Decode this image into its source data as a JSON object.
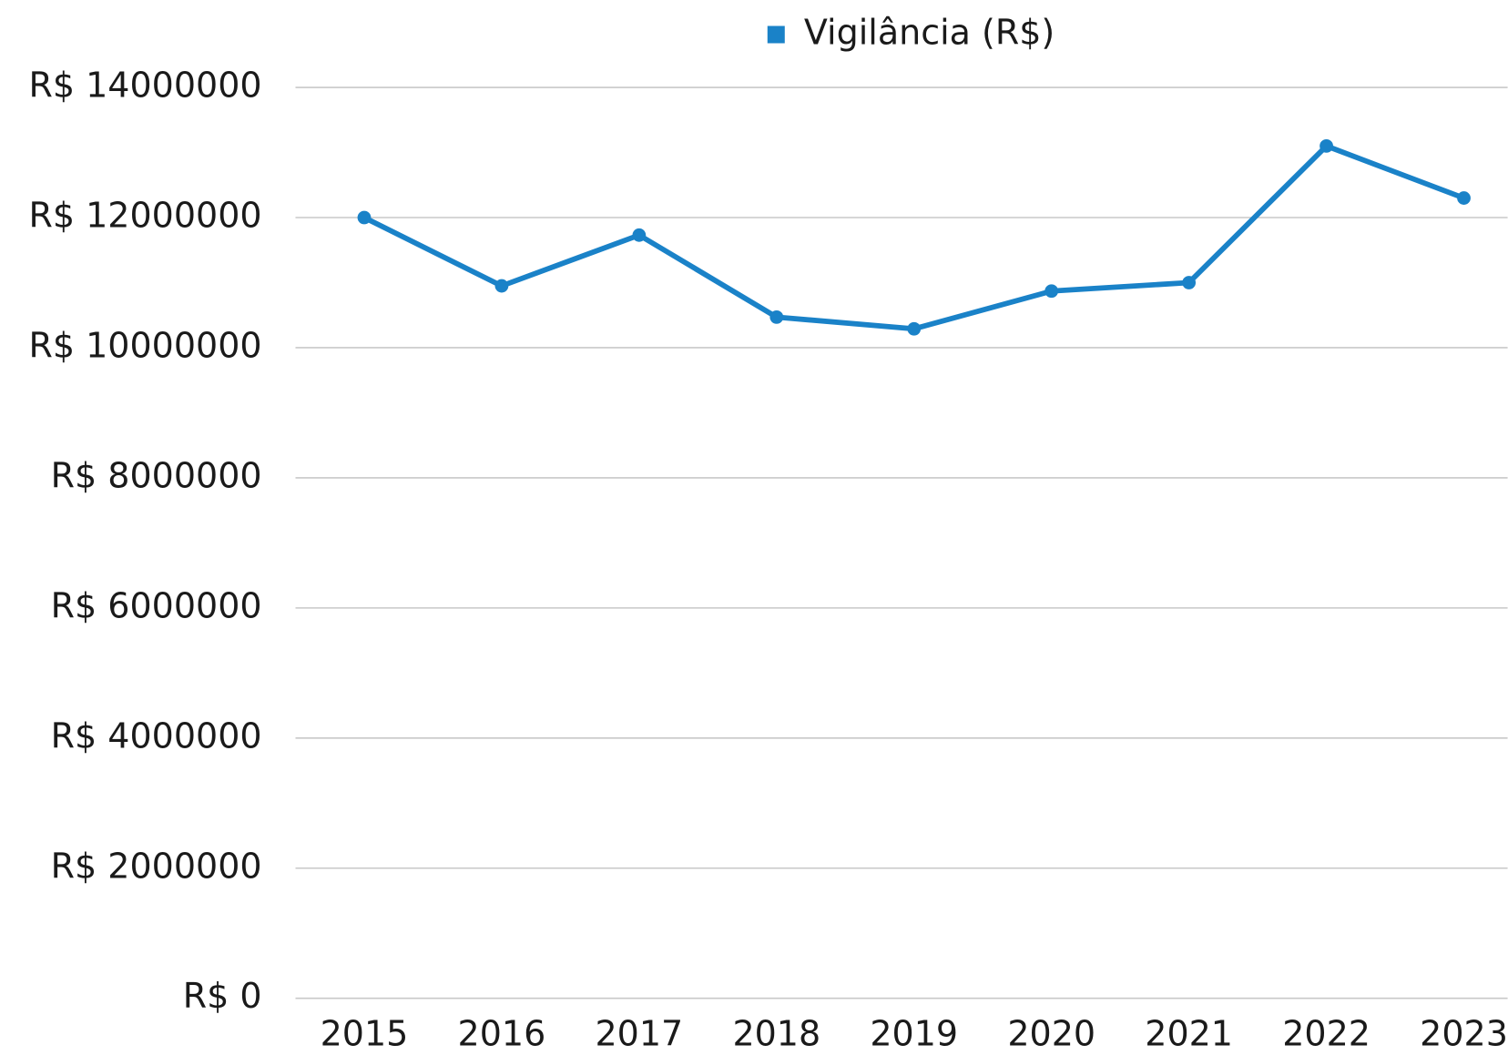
{
  "chart_data": {
    "type": "line",
    "categories": [
      "2015",
      "2016",
      "2017",
      "2018",
      "2019",
      "2020",
      "2021",
      "2022",
      "2023"
    ],
    "series": [
      {
        "name": "Vigilância (R$)",
        "color": "#1a82c8",
        "values": [
          12000000,
          10950000,
          11730000,
          10470000,
          10290000,
          10870000,
          11000000,
          13100000,
          12300000
        ]
      }
    ],
    "ylim": [
      0,
      14000000
    ],
    "yticks": [
      {
        "value": 0,
        "label": "R$ 0"
      },
      {
        "value": 2000000,
        "label": "R$ 2000000"
      },
      {
        "value": 4000000,
        "label": "R$ 4000000"
      },
      {
        "value": 6000000,
        "label": "R$ 6000000"
      },
      {
        "value": 8000000,
        "label": "R$ 8000000"
      },
      {
        "value": 10000000,
        "label": "R$ 10000000"
      },
      {
        "value": 12000000,
        "label": "R$ 12000000"
      },
      {
        "value": 14000000,
        "label": "R$ 14000000"
      }
    ],
    "grid": true,
    "legend": "top"
  }
}
